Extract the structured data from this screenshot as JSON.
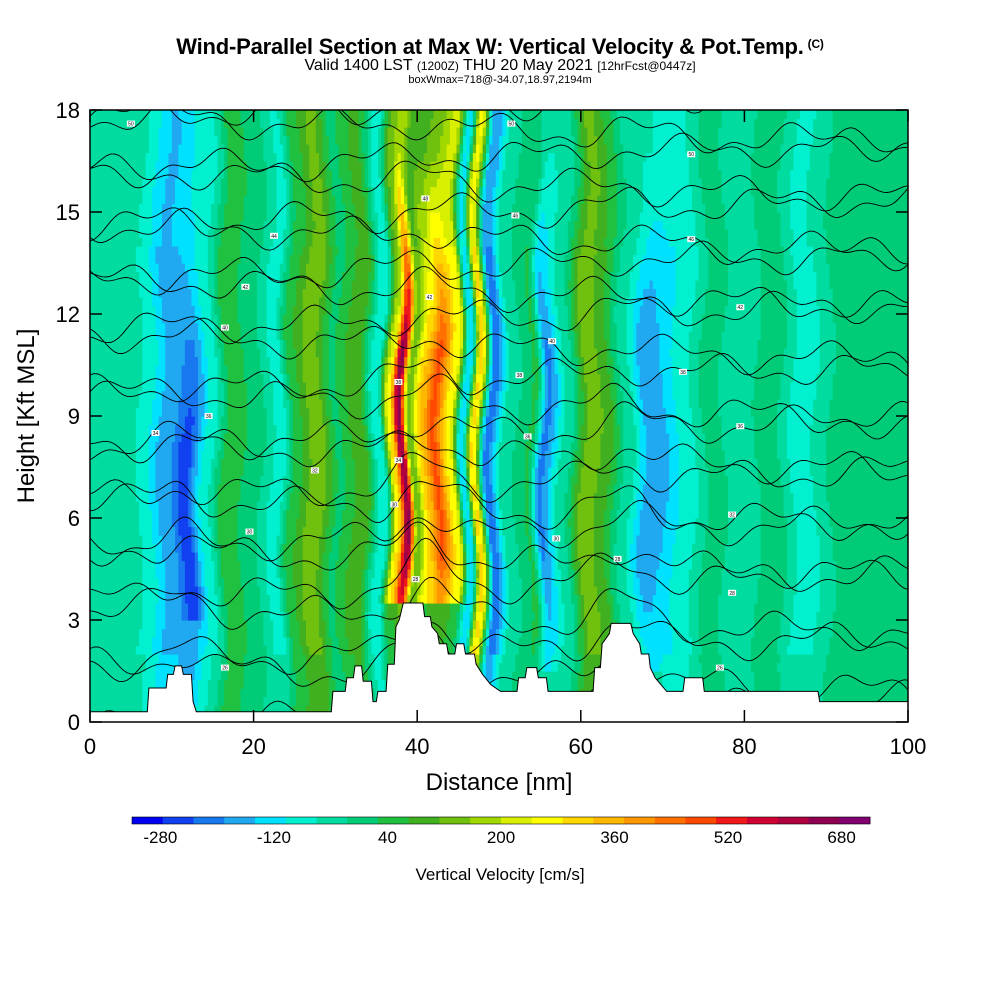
{
  "header": {
    "title": "Wind-Parallel Section at Max W: Vertical Velocity & Pot.Temp.",
    "copyright": "(C)",
    "valid_prefix": "Valid 1400 LST",
    "valid_utc": "(1200Z)",
    "valid_date": "THU 20 May 2021",
    "forecast_info": "[12hrFcst@0447z]",
    "box_info": "boxWmax=718@-34.07,18.97,2194m"
  },
  "chart_data": {
    "type": "heatmap",
    "xlabel": "Distance [nm]",
    "ylabel": "Height [Kft MSL]",
    "xlim": [
      0,
      100
    ],
    "ylim": [
      0,
      18
    ],
    "x_ticks": [
      0,
      20,
      40,
      60,
      80,
      100
    ],
    "y_ticks": [
      0,
      3,
      6,
      9,
      12,
      15,
      18
    ],
    "colorbar": {
      "label": "Vertical Velocity [cm/s]",
      "tick_values": [
        -280,
        -120,
        40,
        200,
        360,
        520,
        680
      ],
      "min": -320,
      "max": 720,
      "colors": [
        "#0000f0",
        "#1040f0",
        "#1878f0",
        "#20a8f0",
        "#00e0ff",
        "#00f0d0",
        "#00dca0",
        "#00cc78",
        "#20c040",
        "#40b020",
        "#70c010",
        "#a0d800",
        "#d8f000",
        "#ffff00",
        "#ffd800",
        "#ffb800",
        "#ff9800",
        "#ff7000",
        "#ff4800",
        "#f01818",
        "#d00030",
        "#b00040",
        "#900050",
        "#800070"
      ]
    },
    "max_w": 718,
    "columns": [
      {
        "x": 2,
        "w": -40,
        "sd": 0,
        "ridge": 0
      },
      {
        "x": 6,
        "w": -60,
        "sd": 0,
        "ridge": 0
      },
      {
        "x": 10,
        "w": -180,
        "sd": 0,
        "ridge": 0
      },
      {
        "x": 12,
        "w": -260,
        "sd": 2,
        "ridge": 0
      },
      {
        "x": 14.5,
        "w": -80,
        "sd": 0,
        "ridge": 0
      },
      {
        "x": 17,
        "w": 60,
        "sd": 0,
        "ridge": 0
      },
      {
        "x": 20,
        "w": 0,
        "sd": 0,
        "ridge": 0
      },
      {
        "x": 23,
        "w": -80,
        "sd": 0,
        "ridge": 0
      },
      {
        "x": 25,
        "w": 60,
        "sd": 0,
        "ridge": 0
      },
      {
        "x": 27.5,
        "w": 150,
        "sd": 0,
        "ridge": 0
      },
      {
        "x": 30,
        "w": 20,
        "sd": 0,
        "ridge": 0
      },
      {
        "x": 33,
        "w": 100,
        "sd": 0,
        "ridge": 0
      },
      {
        "x": 35.5,
        "w": -100,
        "sd": 0,
        "ridge": 0
      },
      {
        "x": 37.2,
        "w": 300,
        "sd": 2,
        "ridge": 1
      },
      {
        "x": 38.3,
        "w": 660,
        "sd": 1,
        "ridge": 1
      },
      {
        "x": 39.5,
        "w": 120,
        "sd": 0,
        "ridge": 1
      },
      {
        "x": 41,
        "w": 330,
        "sd": 1,
        "ridge": 1
      },
      {
        "x": 42.5,
        "w": 470,
        "sd": 1,
        "ridge": 1
      },
      {
        "x": 44.5,
        "w": 260,
        "sd": 0,
        "ridge": 1
      },
      {
        "x": 46,
        "w": -140,
        "sd": 0,
        "ridge": 0
      },
      {
        "x": 47.3,
        "w": 300,
        "sd": 0,
        "ridge": 0
      },
      {
        "x": 49,
        "w": -220,
        "sd": 0,
        "ridge": 0
      },
      {
        "x": 51,
        "w": -40,
        "sd": 0,
        "ridge": 0
      },
      {
        "x": 54,
        "w": 30,
        "sd": 0,
        "ridge": 0
      },
      {
        "x": 55.5,
        "w": -200,
        "sd": 1,
        "ridge": 0
      },
      {
        "x": 58,
        "w": -40,
        "sd": 0,
        "ridge": 0
      },
      {
        "x": 61,
        "w": 150,
        "sd": 0,
        "ridge": 0
      },
      {
        "x": 63,
        "w": 80,
        "sd": 0,
        "ridge": 0
      },
      {
        "x": 65,
        "w": -20,
        "sd": 0,
        "ridge": 0
      },
      {
        "x": 68.5,
        "w": -190,
        "sd": 1,
        "ridge": 0
      },
      {
        "x": 72,
        "w": -100,
        "sd": 0,
        "ridge": 0
      },
      {
        "x": 76,
        "w": 0,
        "sd": 0,
        "ridge": 0
      },
      {
        "x": 80,
        "w": -60,
        "sd": 0,
        "ridge": 0
      },
      {
        "x": 83,
        "w": 20,
        "sd": 0,
        "ridge": 0
      },
      {
        "x": 87,
        "w": -80,
        "sd": 0,
        "ridge": 0
      },
      {
        "x": 92,
        "w": 0,
        "sd": 0,
        "ridge": 0
      },
      {
        "x": 97,
        "w": 10,
        "sd": 0,
        "ridge": 0
      }
    ],
    "terrain": [
      [
        0,
        0.3
      ],
      [
        7,
        0.3
      ],
      [
        7.2,
        1
      ],
      [
        9.3,
        1
      ],
      [
        9.5,
        1.4
      ],
      [
        10.2,
        1.4
      ],
      [
        10.4,
        1.65
      ],
      [
        11.2,
        1.65
      ],
      [
        11.4,
        1.4
      ],
      [
        12.4,
        1.4
      ],
      [
        12.6,
        0.6
      ],
      [
        13,
        0.3
      ],
      [
        29.5,
        0.3
      ],
      [
        29.7,
        0.9
      ],
      [
        31.2,
        0.9
      ],
      [
        31.4,
        1.3
      ],
      [
        32.2,
        1.3
      ],
      [
        32.4,
        1.65
      ],
      [
        33.2,
        1.65
      ],
      [
        33.4,
        1.2
      ],
      [
        34.4,
        1.2
      ],
      [
        34.6,
        0.6
      ],
      [
        35,
        0.6
      ],
      [
        35.2,
        0.9
      ],
      [
        36.2,
        0.9
      ],
      [
        36.4,
        1.7
      ],
      [
        37.2,
        1.7
      ],
      [
        37.4,
        2.8
      ],
      [
        37.8,
        3
      ],
      [
        38.3,
        3.5
      ],
      [
        40.7,
        3.5
      ],
      [
        40.9,
        3.1
      ],
      [
        41.6,
        3.1
      ],
      [
        41.8,
        2.8
      ],
      [
        42.5,
        2.6
      ],
      [
        42.7,
        2.3
      ],
      [
        43.6,
        2.3
      ],
      [
        43.8,
        2
      ],
      [
        44.6,
        2
      ],
      [
        44.8,
        2.3
      ],
      [
        45.7,
        2.3
      ],
      [
        45.9,
        2
      ],
      [
        47,
        2
      ],
      [
        47.2,
        1.7
      ],
      [
        48,
        1.4
      ],
      [
        49,
        1.1
      ],
      [
        50.2,
        0.9
      ],
      [
        52.2,
        0.9
      ],
      [
        52.4,
        1.3
      ],
      [
        53.2,
        1.3
      ],
      [
        53.4,
        1.6
      ],
      [
        54.6,
        1.6
      ],
      [
        54.8,
        1.3
      ],
      [
        55.8,
        1.3
      ],
      [
        56,
        0.9
      ],
      [
        61.5,
        0.9
      ],
      [
        61.7,
        1.6
      ],
      [
        62.4,
        1.6
      ],
      [
        62.6,
        2.3
      ],
      [
        63.5,
        2.6
      ],
      [
        63.7,
        2.9
      ],
      [
        66.1,
        2.9
      ],
      [
        66.4,
        2.6
      ],
      [
        67.2,
        2.3
      ],
      [
        67.4,
        2
      ],
      [
        68.3,
        2
      ],
      [
        68.5,
        1.6
      ],
      [
        69.1,
        1.3
      ],
      [
        70.5,
        0.9
      ],
      [
        72.5,
        0.9
      ],
      [
        72.7,
        1.3
      ],
      [
        74.9,
        1.3
      ],
      [
        75.1,
        0.9
      ],
      [
        89,
        0.9
      ],
      [
        89.2,
        0.6
      ],
      [
        100,
        0.6
      ],
      [
        100,
        0
      ],
      [
        0,
        0
      ]
    ],
    "isentropes": {
      "base_heights": [
        0.3,
        1.3,
        2.1,
        3.0,
        4.0,
        4.7,
        5.5,
        6.2,
        7.0,
        7.8,
        8.5,
        9.3,
        10.1,
        11.0,
        11.9,
        12.6,
        13.4,
        14.2,
        15.0,
        15.8,
        16.6,
        17.4,
        18.2
      ],
      "labels": [
        {
          "x": 5,
          "y": 17.6,
          "text": "50"
        },
        {
          "x": 22.5,
          "y": 14.3,
          "text": "44"
        },
        {
          "x": 19,
          "y": 12.8,
          "text": "42"
        },
        {
          "x": 16.5,
          "y": 11.6,
          "text": "40"
        },
        {
          "x": 14.5,
          "y": 9.0,
          "text": "36"
        },
        {
          "x": 8,
          "y": 8.5,
          "text": "34"
        },
        {
          "x": 27.5,
          "y": 7.4,
          "text": "32"
        },
        {
          "x": 19.5,
          "y": 5.6,
          "text": "30"
        },
        {
          "x": 16.5,
          "y": 1.6,
          "text": "26"
        },
        {
          "x": 51.5,
          "y": 17.6,
          "text": "50"
        },
        {
          "x": 52,
          "y": 14.9,
          "text": "46"
        },
        {
          "x": 41,
          "y": 15.4,
          "text": "48"
        },
        {
          "x": 41.5,
          "y": 12.5,
          "text": "42"
        },
        {
          "x": 37.7,
          "y": 10.0,
          "text": "38"
        },
        {
          "x": 37.7,
          "y": 7.7,
          "text": "34"
        },
        {
          "x": 37.2,
          "y": 6.4,
          "text": "30"
        },
        {
          "x": 39.8,
          "y": 4.2,
          "text": "28"
        },
        {
          "x": 56.5,
          "y": 11.2,
          "text": "40"
        },
        {
          "x": 52.5,
          "y": 10.2,
          "text": "38"
        },
        {
          "x": 53.5,
          "y": 8.4,
          "text": "36"
        },
        {
          "x": 57,
          "y": 5.4,
          "text": "30"
        },
        {
          "x": 64.5,
          "y": 4.8,
          "text": "28"
        },
        {
          "x": 73.5,
          "y": 16.7,
          "text": "50"
        },
        {
          "x": 73.5,
          "y": 14.2,
          "text": "46"
        },
        {
          "x": 79.5,
          "y": 12.2,
          "text": "42"
        },
        {
          "x": 72.5,
          "y": 10.3,
          "text": "38"
        },
        {
          "x": 79.5,
          "y": 8.7,
          "text": "36"
        },
        {
          "x": 78.5,
          "y": 6.1,
          "text": "32"
        },
        {
          "x": 78.5,
          "y": 3.8,
          "text": "28"
        },
        {
          "x": 77,
          "y": 1.6,
          "text": "26"
        }
      ]
    }
  }
}
